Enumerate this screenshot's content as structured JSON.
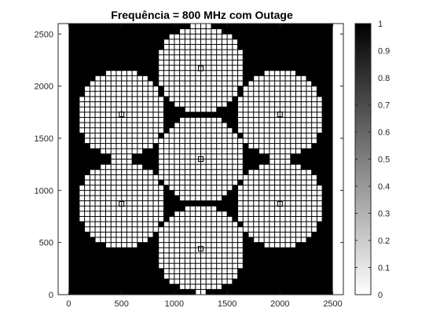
{
  "chart_data": {
    "type": "heatmap",
    "title": "Frequência  = 800 MHz com Outage",
    "xlabel": "",
    "ylabel": "",
    "xlim": [
      -100,
      2600
    ],
    "ylim": [
      0,
      2600
    ],
    "xticks": [
      0,
      500,
      1000,
      1500,
      2000,
      2500
    ],
    "yticks": [
      0,
      500,
      1000,
      1500,
      2000,
      2500
    ],
    "grid": false,
    "colormap": "gray-reversed",
    "colorbar": {
      "range": [
        0,
        1
      ],
      "ticks": [
        0,
        0.1,
        0.2,
        0.3,
        0.4,
        0.5,
        0.6,
        0.7,
        0.8,
        0.9,
        1
      ],
      "tick_labels": [
        "0",
        "0.1",
        "0.2",
        "0.3",
        "0.4",
        "0.5",
        "0.6",
        "0.7",
        "0.8",
        "0.9",
        "1"
      ],
      "colors": {
        "low": "#ffffff",
        "high": "#000000"
      }
    },
    "heatmap_extent": {
      "x": [
        0,
        2500
      ],
      "y": [
        0,
        2600
      ]
    },
    "grid_step": 50,
    "coverage_radius": 420,
    "value_inside_coverage": 0,
    "value_outage": 1,
    "base_stations": [
      {
        "x": 1250,
        "y": 2170
      },
      {
        "x": 500,
        "y": 1730
      },
      {
        "x": 2000,
        "y": 1730
      },
      {
        "x": 1250,
        "y": 1300
      },
      {
        "x": 500,
        "y": 870
      },
      {
        "x": 2000,
        "y": 870
      },
      {
        "x": 1250,
        "y": 440
      }
    ]
  }
}
